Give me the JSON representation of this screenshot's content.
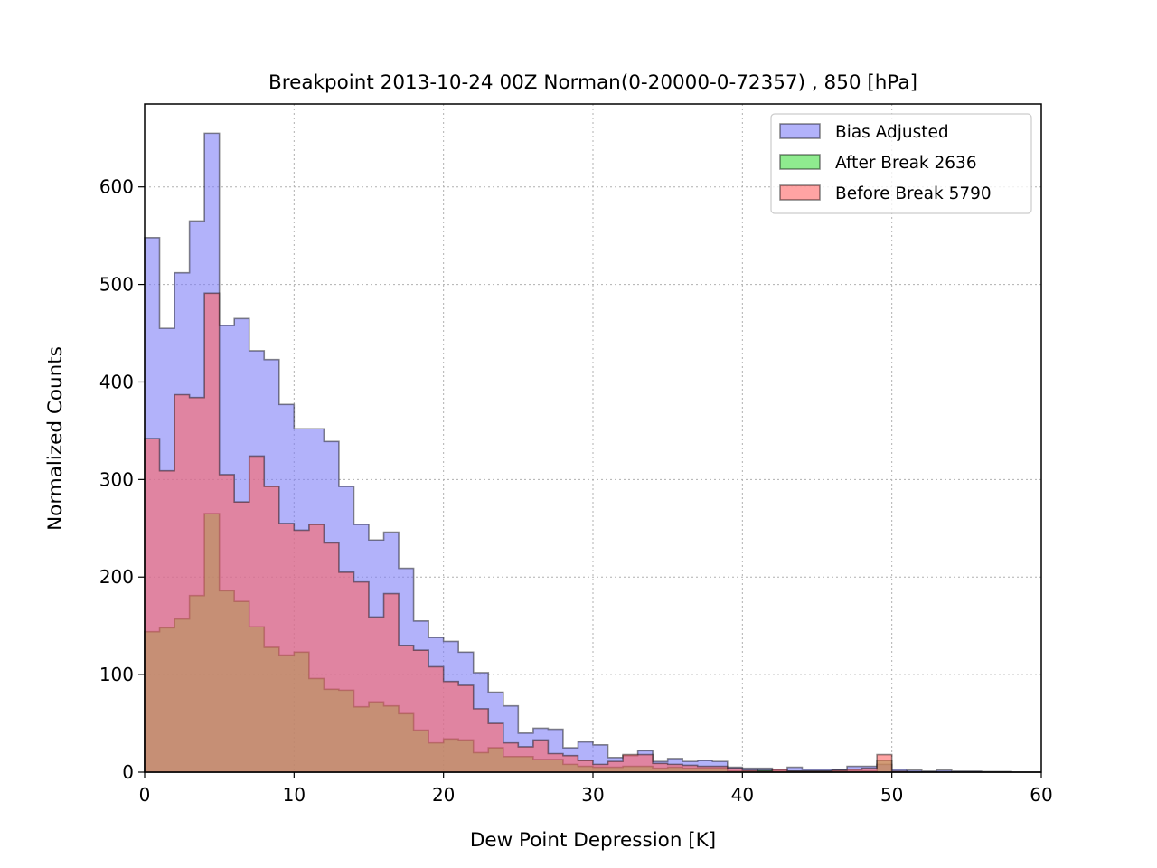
{
  "chart_data": {
    "type": "histogram",
    "title": "Breakpoint 2013-10-24 00Z Norman(0-20000-0-72357) , 850 [hPa]",
    "xlabel": "Dew Point Depression [K]",
    "ylabel": "Normalized Counts",
    "xlim": [
      0,
      60
    ],
    "ylim": [
      0,
      685
    ],
    "xticks": [
      "0",
      "10",
      "20",
      "30",
      "40",
      "50",
      "60"
    ],
    "yticks": [
      "0",
      "100",
      "200",
      "300",
      "400",
      "500",
      "600"
    ],
    "grid": true,
    "legend_position": "top-right",
    "bin_width": 1,
    "x_start": 0,
    "series": [
      {
        "name": "Bias Adjusted",
        "color": "#7f7ff7",
        "values": [
          548,
          455,
          512,
          565,
          655,
          458,
          465,
          432,
          423,
          377,
          352,
          352,
          339,
          293,
          254,
          238,
          246,
          209,
          155,
          138,
          134,
          123,
          102,
          82,
          68,
          40,
          45,
          44,
          25,
          31,
          28,
          15,
          17,
          22,
          11,
          14,
          11,
          12,
          11,
          5,
          4,
          4,
          3,
          5,
          3,
          3,
          3,
          6,
          6,
          8,
          3,
          2,
          1,
          2,
          1,
          1,
          0.5,
          0.5,
          0,
          0
        ]
      },
      {
        "name": "After Break 2636",
        "color": "#44dd44",
        "values": [
          144,
          148,
          157,
          181,
          265,
          186,
          175,
          149,
          128,
          120,
          123,
          96,
          85,
          84,
          67,
          72,
          68,
          60,
          43,
          30,
          34,
          33,
          20,
          25,
          16,
          16,
          13,
          13,
          8,
          6,
          5,
          5,
          6,
          6,
          4,
          5,
          4,
          4,
          4,
          1,
          1,
          2,
          1,
          1,
          1,
          1,
          1,
          1,
          1,
          12,
          0,
          0,
          0,
          0,
          0,
          0,
          0,
          0,
          0,
          0
        ]
      },
      {
        "name": "Before Break 5790",
        "color": "#ff6666",
        "values": [
          342,
          309,
          387,
          384,
          491,
          305,
          277,
          324,
          293,
          255,
          248,
          254,
          235,
          205,
          195,
          159,
          183,
          130,
          125,
          108,
          93,
          89,
          65,
          50,
          30,
          26,
          33,
          19,
          17,
          12,
          8,
          11,
          18,
          18,
          9,
          8,
          7,
          6,
          6,
          4,
          2,
          1,
          3,
          1,
          1,
          1,
          2,
          3,
          4,
          18,
          1,
          0,
          0,
          0,
          0,
          0,
          0,
          0,
          0,
          0
        ]
      }
    ]
  }
}
